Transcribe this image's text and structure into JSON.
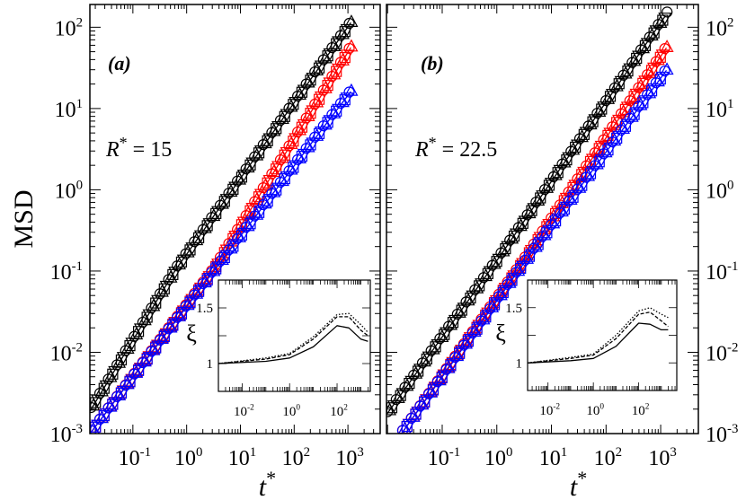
{
  "chart_data": [
    {
      "type": "line",
      "panel_label": "(a)",
      "annotation": "R* = 15",
      "xlabel": "t*",
      "ylabel": "MSD",
      "xscale": "log",
      "yscale": "log",
      "xlim_log10": [
        -1.8,
        3.6
      ],
      "ylim_log10": [
        -3,
        2.28
      ],
      "x_tick_labels": [
        "10^-1",
        "10^0",
        "10^1",
        "10^2",
        "10^3"
      ],
      "x_tick_exponents": [
        -1,
        0,
        1,
        2,
        3
      ],
      "y_tick_labels": [
        "10^-3",
        "10^-2",
        "10^-1",
        "10^0",
        "10^1",
        "10^2"
      ],
      "y_tick_exponents": [
        -3,
        -2,
        -1,
        0,
        1,
        2
      ],
      "y_labels_side": "left",
      "series": [
        {
          "name": "black",
          "color": "#000000",
          "points": [
            [
              0.016,
              0.0019
            ],
            [
              0.6,
              0.1
            ],
            [
              1200,
              120
            ]
          ]
        },
        {
          "name": "red",
          "color": "#ff0000",
          "points": [
            [
              0.016,
              0.001
            ],
            [
              3.2,
              0.105
            ],
            [
              1200,
              60
            ]
          ]
        },
        {
          "name": "blue",
          "color": "#0000ff",
          "points": [
            [
              0.016,
              0.001
            ],
            [
              3.2,
              0.1
            ],
            [
              1200,
              17
            ]
          ]
        }
      ],
      "inset": {
        "ylabel": "ξ",
        "xlim_log10": [
          -3,
          3.4
        ],
        "ylim": [
          0.75,
          1.75
        ],
        "x_tick_labels": [
          "10^-2",
          "10^0",
          "10^2"
        ],
        "x_tick_exponents": [
          -2,
          0,
          2
        ],
        "y_tick_labels": [
          "1",
          "1.5"
        ],
        "y_tick_values": [
          1,
          1.5
        ],
        "series": [
          {
            "name": "solid",
            "style": "solid",
            "points": [
              [
                -3,
                1.0
              ],
              [
                -1,
                1.02
              ],
              [
                0,
                1.05
              ],
              [
                1,
                1.15
              ],
              [
                2,
                1.34
              ],
              [
                2.5,
                1.32
              ],
              [
                3,
                1.22
              ],
              [
                3.3,
                1.2
              ]
            ]
          },
          {
            "name": "dashed",
            "style": "dashed",
            "points": [
              [
                -3,
                1.0
              ],
              [
                -1,
                1.04
              ],
              [
                0,
                1.08
              ],
              [
                1,
                1.22
              ],
              [
                2,
                1.42
              ],
              [
                2.5,
                1.42
              ],
              [
                3,
                1.3
              ],
              [
                3.3,
                1.25
              ]
            ]
          },
          {
            "name": "dotted",
            "style": "dotted",
            "points": [
              [
                -3,
                1.0
              ],
              [
                -1,
                1.05
              ],
              [
                0,
                1.09
              ],
              [
                1,
                1.24
              ],
              [
                2,
                1.44
              ],
              [
                2.5,
                1.45
              ],
              [
                3,
                1.35
              ],
              [
                3.3,
                1.28
              ]
            ]
          }
        ]
      }
    },
    {
      "type": "line",
      "panel_label": "(b)",
      "annotation": "R* = 22.5",
      "xlabel": "t*",
      "ylabel": "",
      "xscale": "log",
      "yscale": "log",
      "xlim_log10": [
        -2.02,
        3.69
      ],
      "ylim_log10": [
        -3,
        2.28
      ],
      "x_tick_labels": [
        "10^-1",
        "10^0",
        "10^1",
        "10^2",
        "10^3"
      ],
      "x_tick_exponents": [
        -1,
        0,
        1,
        2,
        3
      ],
      "y_tick_labels": [
        "10^-3",
        "10^-2",
        "10^-1",
        "10^0",
        "10^1",
        "10^2"
      ],
      "y_tick_exponents": [
        -3,
        -2,
        -1,
        0,
        1,
        2
      ],
      "y_labels_side": "right",
      "series": [
        {
          "name": "black",
          "color": "#000000",
          "points": [
            [
              0.0095,
              0.0017
            ],
            [
              1.0,
              0.134
            ],
            [
              1300,
              147
            ]
          ]
        },
        {
          "name": "red",
          "color": "#ff0000",
          "points": [
            [
              0.018,
              0.001
            ],
            [
              3.0,
              0.13
            ],
            [
              1300,
              57
            ]
          ]
        },
        {
          "name": "blue",
          "color": "#0000ff",
          "points": [
            [
              0.018,
              0.001
            ],
            [
              3.0,
              0.12
            ],
            [
              1300,
              30
            ]
          ]
        }
      ],
      "inset": {
        "ylabel": "ξ",
        "xlim_log10": [
          -2.9,
          3.68
        ],
        "ylim": [
          0.75,
          1.75
        ],
        "x_tick_labels": [
          "10^-2",
          "10^0",
          "10^2"
        ],
        "x_tick_exponents": [
          -2,
          0,
          2
        ],
        "y_tick_labels": [
          "1",
          "1.5"
        ],
        "y_tick_values": [
          1,
          1.5
        ],
        "series": [
          {
            "name": "solid",
            "style": "solid",
            "points": [
              [
                -2.9,
                1.0
              ],
              [
                -1,
                1.02
              ],
              [
                0,
                1.04
              ],
              [
                1,
                1.15
              ],
              [
                2,
                1.36
              ],
              [
                2.5,
                1.35
              ],
              [
                3,
                1.3
              ],
              [
                3.3,
                1.3
              ]
            ]
          },
          {
            "name": "dashed",
            "style": "dashed",
            "points": [
              [
                -2.9,
                1.0
              ],
              [
                -1,
                1.04
              ],
              [
                0,
                1.07
              ],
              [
                1,
                1.22
              ],
              [
                2,
                1.44
              ],
              [
                2.5,
                1.46
              ],
              [
                3,
                1.38
              ],
              [
                3.3,
                1.33
              ]
            ]
          },
          {
            "name": "dotted",
            "style": "dotted",
            "points": [
              [
                -2.9,
                1.0
              ],
              [
                -1,
                1.05
              ],
              [
                0,
                1.08
              ],
              [
                1,
                1.25
              ],
              [
                2,
                1.47
              ],
              [
                2.5,
                1.5
              ],
              [
                3,
                1.44
              ],
              [
                3.3,
                1.41
              ]
            ]
          }
        ]
      }
    }
  ]
}
